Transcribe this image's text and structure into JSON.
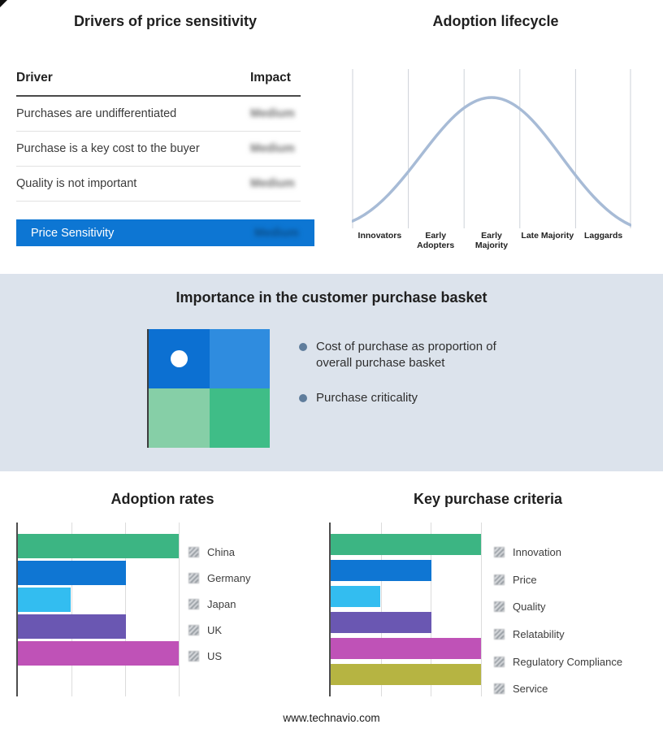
{
  "drivers": {
    "title": "Drivers of price sensitivity",
    "columns": [
      "Driver",
      "Impact"
    ],
    "rows": [
      {
        "driver": "Purchases are undifferentiated",
        "impact": "Medium",
        "impact_blurred": true
      },
      {
        "driver": "Purchase is a key cost to the buyer",
        "impact": "Medium",
        "impact_blurred": true
      },
      {
        "driver": "Quality is not important",
        "impact": "Medium",
        "impact_blurred": true
      }
    ],
    "summary": {
      "label": "Price Sensitivity",
      "impact": "Medium",
      "impact_blurred": true
    },
    "bar_color": "#0d76d3"
  },
  "lifecycle": {
    "title": "Adoption lifecycle",
    "stages": [
      "Innovators",
      "Early Adopters",
      "Early Majority",
      "Late Majority",
      "Laggards"
    ],
    "curve_color": "#a7bbd6"
  },
  "basket": {
    "title": "Importance in the customer purchase basket",
    "bullets": [
      "Cost of purchase as proportion of overall purchase basket",
      "Purchase criticality"
    ],
    "matrix_colors": {
      "top_left": "#0c70d2",
      "top_right": "#2f8cdf",
      "bottom_left": "#86cfa7",
      "bottom_right": "#3fbd87"
    },
    "band_background": "#dce3ec"
  },
  "adoption_rates": {
    "title": "Adoption rates"
  },
  "key_purchase_criteria": {
    "title": "Key purchase criteria"
  },
  "footer": {
    "url": "www.technavio.com"
  },
  "chart_data": [
    {
      "type": "line",
      "title": "Adoption lifecycle",
      "x_labels": [
        "Innovators",
        "Early Adopters",
        "Early Majority",
        "Late Majority",
        "Laggards"
      ],
      "series": [
        {
          "name": "adoption-bell-curve",
          "shape": "bell",
          "values": [
            0.08,
            0.55,
            1.0,
            0.55,
            0.05
          ]
        }
      ],
      "grid": "vertical",
      "line_color": "#a7bbd6",
      "legend_position": "none"
    },
    {
      "type": "bar",
      "orientation": "horizontal",
      "title": "Adoption rates",
      "categories": [
        "China",
        "Germany",
        "Japan",
        "UK",
        "US"
      ],
      "values": [
        100,
        67,
        33,
        67,
        100
      ],
      "xlim": [
        0,
        100
      ],
      "colors": [
        "#3cb583",
        "#0f76d3",
        "#33bdf0",
        "#6a57b2",
        "#bf52b7"
      ],
      "grid": "vertical",
      "legend_position": "right"
    },
    {
      "type": "bar",
      "orientation": "horizontal",
      "title": "Key purchase criteria",
      "categories": [
        "Innovation",
        "Price",
        "Quality",
        "Relatability",
        "Regulatory Compliance",
        "Service"
      ],
      "values": [
        100,
        67,
        33,
        67,
        100,
        100
      ],
      "xlim": [
        0,
        100
      ],
      "colors": [
        "#3cb583",
        "#0f76d3",
        "#33bdf0",
        "#6a57b2",
        "#bf52b7",
        "#b6b442"
      ],
      "grid": "vertical",
      "legend_position": "right"
    }
  ]
}
